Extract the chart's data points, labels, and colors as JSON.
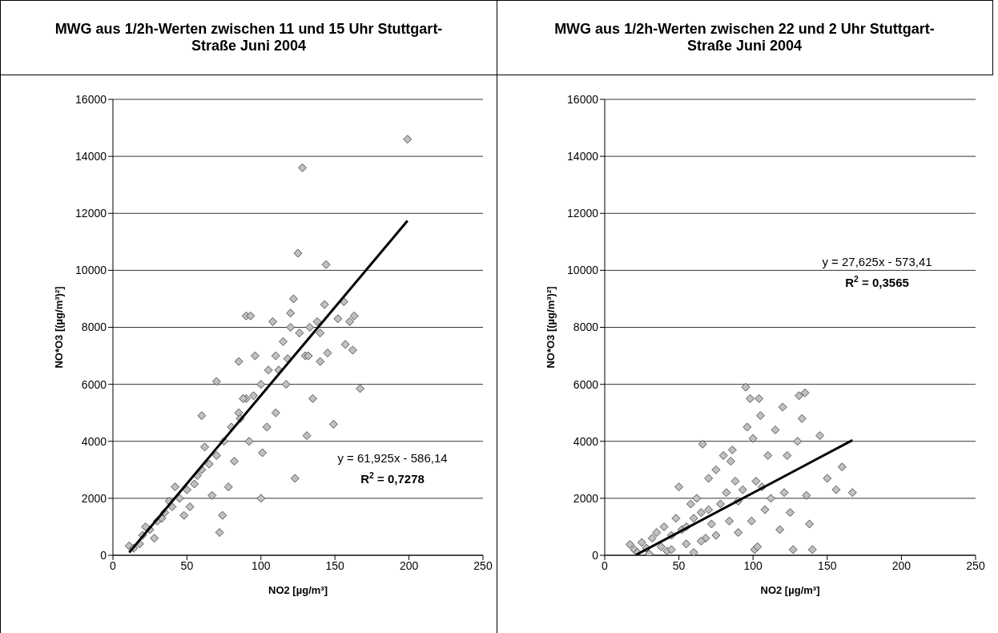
{
  "chart_data": [
    {
      "type": "scatter",
      "title": "MWG aus 1/2h-Werten zwischen 11 und 15 Uhr Stuttgart-Straße Juni 2004",
      "xlabel": "NO2 [µg/m³]",
      "ylabel": "NO*O3 [(µg/m³)²]",
      "xlim": [
        0,
        250
      ],
      "xticks": [
        0,
        50,
        100,
        150,
        200,
        250
      ],
      "ylim": [
        0,
        16000
      ],
      "yticks": [
        0,
        2000,
        4000,
        6000,
        8000,
        10000,
        12000,
        14000,
        16000
      ],
      "grid": "y",
      "annotations": [
        "y = 61,925x - 586,14",
        "R$^{2}$ = 0,7278"
      ],
      "series": [
        {
          "color": "#c0c0c0",
          "marker": "diamond",
          "x": [
            11,
            14,
            20,
            25,
            30,
            35,
            40,
            45,
            50,
            55,
            60,
            65,
            70,
            75,
            80,
            85,
            90,
            95,
            100,
            105,
            110,
            115,
            120,
            18,
            22,
            28,
            33,
            38,
            42,
            48,
            52,
            57,
            62,
            67,
            72,
            74,
            78,
            82,
            86,
            88,
            90,
            93,
            96,
            100,
            101,
            104,
            108,
            112,
            117,
            120,
            122,
            123,
            125,
            128,
            130,
            131,
            133,
            135,
            138,
            140,
            143,
            144,
            145,
            149,
            152,
            156,
            157,
            160,
            162,
            163,
            167,
            199,
            60,
            70,
            85,
            92,
            110,
            118,
            126,
            132,
            140
          ],
          "values": [
            330,
            250,
            700,
            900,
            1200,
            1500,
            1700,
            2000,
            2300,
            2500,
            3000,
            3200,
            3500,
            4000,
            4500,
            5000,
            5500,
            5600,
            6000,
            6500,
            7000,
            7500,
            8000,
            400,
            1000,
            600,
            1300,
            1900,
            2400,
            1400,
            1700,
            2800,
            3800,
            2100,
            800,
            1400,
            2400,
            3300,
            4800,
            5500,
            8400,
            8400,
            7000,
            2000,
            3600,
            4500,
            8200,
            6500,
            6000,
            8500,
            9000,
            2700,
            10600,
            13600,
            7000,
            4200,
            8000,
            5500,
            8200,
            6800,
            8800,
            10200,
            7100,
            4600,
            8300,
            8900,
            7400,
            8200,
            7200,
            8400,
            5850,
            14600,
            4900,
            6100,
            6800,
            4000,
            5000,
            6900,
            7800,
            7000,
            7800
          ]
        },
        {
          "type": "line",
          "color": "#000000",
          "x": [
            11,
            199
          ],
          "marker": "none",
          "values": [
            100,
            11740
          ]
        }
      ]
    },
    {
      "type": "scatter",
      "title": "MWG aus 1/2h-Werten zwischen 22 und 2 Uhr Stuttgart-Straße Juni 2004",
      "xlabel": "NO2 [µg/m³]",
      "ylabel": "NO*O3 [(µg/m³)²]",
      "xlim": [
        0,
        250
      ],
      "xticks": [
        0,
        50,
        100,
        150,
        200,
        250
      ],
      "ylim": [
        0,
        16000
      ],
      "yticks": [
        0,
        2000,
        4000,
        6000,
        8000,
        10000,
        12000,
        14000,
        16000
      ],
      "grid": "y",
      "annotations": [
        "y = 27,625x - 573,41",
        "R$^{2}$ = 0,3565"
      ],
      "series": [
        {
          "color": "#c0c0c0",
          "marker": "diamond",
          "x": [
            17,
            20,
            22,
            25,
            28,
            30,
            32,
            35,
            38,
            40,
            42,
            45,
            48,
            50,
            52,
            55,
            58,
            60,
            62,
            65,
            66,
            68,
            70,
            72,
            75,
            78,
            80,
            82,
            84,
            86,
            88,
            90,
            93,
            95,
            96,
            98,
            99,
            100,
            101,
            102,
            103,
            104,
            105,
            106,
            108,
            110,
            112,
            115,
            118,
            120,
            121,
            123,
            125,
            127,
            130,
            131,
            133,
            135,
            136,
            138,
            140,
            145,
            150,
            156,
            160,
            167,
            85,
            70,
            60,
            45,
            55,
            75,
            90,
            65
          ],
          "values": [
            380,
            200,
            100,
            450,
            250,
            50,
            600,
            800,
            300,
            1000,
            150,
            700,
            1300,
            2400,
            900,
            400,
            1800,
            100,
            2000,
            1500,
            3900,
            600,
            2700,
            1100,
            3000,
            1800,
            3500,
            2200,
            1200,
            3700,
            2600,
            800,
            2300,
            5900,
            4500,
            5500,
            1200,
            4100,
            200,
            2600,
            300,
            5500,
            4900,
            2400,
            1600,
            3500,
            2000,
            4400,
            900,
            5200,
            2200,
            3500,
            1500,
            200,
            4000,
            5600,
            4800,
            5700,
            2100,
            1100,
            200,
            4200,
            2700,
            2300,
            3100,
            2200,
            3300,
            1600,
            1300,
            200,
            1000,
            700,
            1900,
            500
          ]
        },
        {
          "type": "line",
          "color": "#000000",
          "x": [
            21,
            167
          ],
          "marker": "none",
          "values": [
            10,
            4040
          ]
        }
      ]
    }
  ]
}
